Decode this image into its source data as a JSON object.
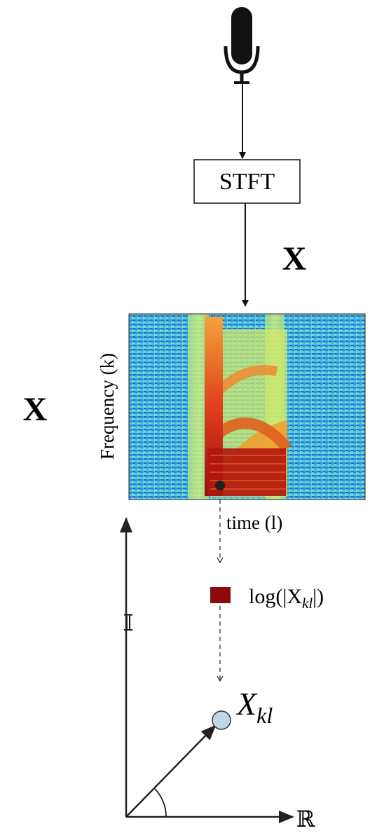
{
  "stft_box": {
    "label": "STFT"
  },
  "signal_label": "X",
  "matrix_label": "X",
  "spectrogram": {
    "y_axis_label": "Frequency (k)",
    "x_axis_label": "time (l)"
  },
  "magnitude_legend": {
    "prefix": "log(|X",
    "subscript": "kl",
    "suffix": "|)"
  },
  "complex_point": {
    "base": "X",
    "subscript": "kl"
  },
  "imaginary_axis_label": "𝕀",
  "real_axis_label": "ℝ"
}
